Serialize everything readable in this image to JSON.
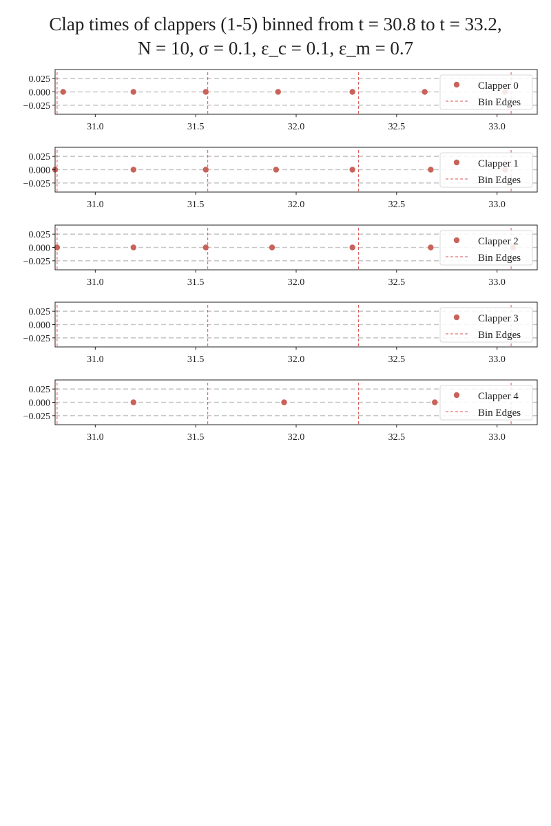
{
  "figure": {
    "title_line1": "Clap times of clappers (1-5) binned from t = 30.8 to t = 33.2,",
    "title_line2": "N = 10, σ = 0.1, ε_c = 0.1, ε_m = 0.7"
  },
  "colors": {
    "points": "#c8635a",
    "bin_edges": "#d9534f",
    "grid_dashed": "#c8c8c8",
    "axes": "#222222"
  },
  "chart_data": [
    {
      "type": "scatter",
      "x_range": [
        30.8,
        33.2
      ],
      "y_range": [
        -0.042,
        0.042
      ],
      "x_ticks": [
        31.0,
        31.5,
        32.0,
        32.5,
        33.0
      ],
      "y_ticks": [
        0.025,
        0.0,
        -0.025
      ],
      "x_tick_labels": [
        "31.0",
        "31.5",
        "32.0",
        "32.5",
        "33.0"
      ],
      "y_tick_labels": [
        "0.025",
        "0.000",
        "−0.025"
      ],
      "bin_edges": [
        30.81,
        31.56,
        32.31,
        33.07
      ],
      "series": [
        {
          "name": "Clapper 0",
          "x": [
            30.84,
            31.19,
            31.55,
            31.91,
            32.28,
            32.64,
            33.04
          ],
          "y": [
            0,
            0,
            0,
            0,
            0,
            0,
            0
          ]
        }
      ],
      "legend": [
        "Clapper 0",
        "Bin Edges"
      ],
      "legend_position": "upper right",
      "grid": "y dashed"
    },
    {
      "type": "scatter",
      "x_range": [
        30.8,
        33.2
      ],
      "y_range": [
        -0.042,
        0.042
      ],
      "x_ticks": [
        31.0,
        31.5,
        32.0,
        32.5,
        33.0
      ],
      "y_ticks": [
        0.025,
        0.0,
        -0.025
      ],
      "x_tick_labels": [
        "31.0",
        "31.5",
        "32.0",
        "32.5",
        "33.0"
      ],
      "y_tick_labels": [
        "0.025",
        "0.000",
        "−0.025"
      ],
      "bin_edges": [
        30.81,
        31.56,
        32.31,
        33.07
      ],
      "series": [
        {
          "name": "Clapper 1",
          "x": [
            30.8,
            31.19,
            31.55,
            31.9,
            32.28,
            32.67,
            33.04
          ],
          "y": [
            0,
            0,
            0,
            0,
            0,
            0,
            0
          ]
        }
      ],
      "legend": [
        "Clapper 1",
        "Bin Edges"
      ],
      "legend_position": "upper right",
      "grid": "y dashed"
    },
    {
      "type": "scatter",
      "x_range": [
        30.8,
        33.2
      ],
      "y_range": [
        -0.042,
        0.042
      ],
      "x_ticks": [
        31.0,
        31.5,
        32.0,
        32.5,
        33.0
      ],
      "y_ticks": [
        0.025,
        0.0,
        -0.025
      ],
      "x_tick_labels": [
        "31.0",
        "31.5",
        "32.0",
        "32.5",
        "33.0"
      ],
      "y_tick_labels": [
        "0.025",
        "0.000",
        "−0.025"
      ],
      "bin_edges": [
        30.81,
        31.56,
        32.31,
        33.07
      ],
      "series": [
        {
          "name": "Clapper 2",
          "x": [
            30.81,
            31.19,
            31.55,
            31.88,
            32.28,
            32.67,
            33.08
          ],
          "y": [
            0,
            0,
            0,
            0,
            0,
            0,
            0
          ]
        }
      ],
      "legend": [
        "Clapper 2",
        "Bin Edges"
      ],
      "legend_position": "upper right",
      "grid": "y dashed"
    },
    {
      "type": "scatter",
      "x_range": [
        30.8,
        33.2
      ],
      "y_range": [
        -0.042,
        0.042
      ],
      "x_ticks": [
        31.0,
        31.5,
        32.0,
        32.5,
        33.0
      ],
      "y_ticks": [
        0.025,
        0.0,
        -0.025
      ],
      "x_tick_labels": [
        "31.0",
        "31.5",
        "32.0",
        "32.5",
        "33.0"
      ],
      "y_tick_labels": [
        "0.025",
        "0.000",
        "−0.025"
      ],
      "bin_edges": [
        30.81,
        31.56,
        32.31,
        33.07
      ],
      "series": [
        {
          "name": "Clapper 3",
          "x": [],
          "y": []
        }
      ],
      "legend": [
        "Clapper 3",
        "Bin Edges"
      ],
      "legend_position": "upper right",
      "grid": "y dashed"
    },
    {
      "type": "scatter",
      "x_range": [
        30.8,
        33.2
      ],
      "y_range": [
        -0.042,
        0.042
      ],
      "x_ticks": [
        31.0,
        31.5,
        32.0,
        32.5,
        33.0
      ],
      "y_ticks": [
        0.025,
        0.0,
        -0.025
      ],
      "x_tick_labels": [
        "31.0",
        "31.5",
        "32.0",
        "32.5",
        "33.0"
      ],
      "y_tick_labels": [
        "0.025",
        "0.000",
        "−0.025"
      ],
      "bin_edges": [
        30.81,
        31.56,
        32.31,
        33.07
      ],
      "series": [
        {
          "name": "Clapper 4",
          "x": [
            31.19,
            31.94,
            32.69
          ],
          "y": [
            0,
            0,
            0
          ]
        }
      ],
      "legend": [
        "Clapper 4",
        "Bin Edges"
      ],
      "legend_position": "upper right",
      "grid": "y dashed"
    }
  ]
}
